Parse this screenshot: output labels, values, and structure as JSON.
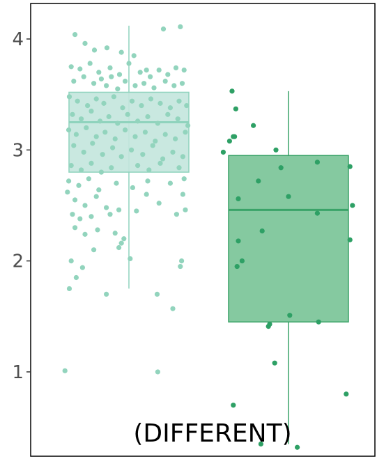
{
  "chart_data": {
    "type": "box",
    "title": "",
    "xlabel": "",
    "ylabel": "",
    "ylim": [
      0.24,
      4.32
    ],
    "yticks": [
      1,
      2,
      3,
      4
    ],
    "grid": false,
    "annotation": "(DIFFERENT)",
    "groups": [
      {
        "color_fill": "#c3e6dd",
        "color_stroke": "#8fd3bd",
        "color_point": "#92d4bd",
        "box": {
          "whisker_low": 1.75,
          "q1": 2.8,
          "median": 3.25,
          "q3": 3.52,
          "whisker_high": 4.12
        },
        "points": [
          [
            -0.86,
            4.04
          ],
          [
            -0.7,
            3.96
          ],
          [
            -0.55,
            3.9
          ],
          [
            -0.35,
            3.92
          ],
          [
            -0.12,
            3.88
          ],
          [
            0.08,
            3.85
          ],
          [
            0.28,
            3.72
          ],
          [
            0.55,
            4.09
          ],
          [
            0.82,
            4.11
          ],
          [
            -0.92,
            3.75
          ],
          [
            -0.78,
            3.73
          ],
          [
            -0.62,
            3.78
          ],
          [
            -0.48,
            3.7
          ],
          [
            -0.3,
            3.74
          ],
          [
            -0.15,
            3.68
          ],
          [
            0.0,
            3.78
          ],
          [
            0.18,
            3.7
          ],
          [
            0.34,
            3.66
          ],
          [
            0.48,
            3.72
          ],
          [
            0.62,
            3.68
          ],
          [
            0.75,
            3.74
          ],
          [
            0.88,
            3.72
          ],
          [
            -0.88,
            3.62
          ],
          [
            -0.72,
            3.66
          ],
          [
            -0.56,
            3.6
          ],
          [
            -0.44,
            3.64
          ],
          [
            -0.36,
            3.58
          ],
          [
            -0.28,
            3.66
          ],
          [
            -0.18,
            3.55
          ],
          [
            -0.06,
            3.62
          ],
          [
            0.1,
            3.58
          ],
          [
            0.24,
            3.6
          ],
          [
            0.4,
            3.56
          ],
          [
            0.58,
            3.62
          ],
          [
            0.72,
            3.58
          ],
          [
            0.85,
            3.6
          ],
          [
            -0.95,
            3.48
          ],
          [
            -0.82,
            3.44
          ],
          [
            -0.66,
            3.4
          ],
          [
            -0.52,
            3.46
          ],
          [
            -0.4,
            3.42
          ],
          [
            -0.24,
            3.48
          ],
          [
            -0.1,
            3.38
          ],
          [
            0.05,
            3.44
          ],
          [
            0.2,
            3.4
          ],
          [
            0.35,
            3.46
          ],
          [
            0.5,
            3.42
          ],
          [
            0.66,
            3.38
          ],
          [
            0.8,
            3.44
          ],
          [
            0.92,
            3.4
          ],
          [
            -0.9,
            3.32
          ],
          [
            -0.76,
            3.28
          ],
          [
            -0.6,
            3.35
          ],
          [
            -0.46,
            3.26
          ],
          [
            -0.32,
            3.3
          ],
          [
            -0.18,
            3.24
          ],
          [
            -0.02,
            3.32
          ],
          [
            0.14,
            3.26
          ],
          [
            0.3,
            3.3
          ],
          [
            0.46,
            3.24
          ],
          [
            0.62,
            3.32
          ],
          [
            0.78,
            3.28
          ],
          [
            0.94,
            3.22
          ],
          [
            -0.96,
            3.18
          ],
          [
            -0.84,
            3.14
          ],
          [
            -0.68,
            3.2
          ],
          [
            -0.52,
            3.12
          ],
          [
            -0.38,
            3.16
          ],
          [
            -0.22,
            3.1
          ],
          [
            -0.06,
            3.18
          ],
          [
            0.1,
            3.12
          ],
          [
            0.26,
            3.16
          ],
          [
            0.42,
            3.08
          ],
          [
            0.58,
            3.14
          ],
          [
            0.74,
            3.1
          ],
          [
            0.9,
            3.16
          ],
          [
            -0.88,
            3.04
          ],
          [
            -0.72,
            2.98
          ],
          [
            -0.58,
            3.06
          ],
          [
            -0.42,
            2.96
          ],
          [
            -0.26,
            3.02
          ],
          [
            -0.12,
            2.94
          ],
          [
            0.04,
            3.0
          ],
          [
            0.22,
            2.96
          ],
          [
            0.38,
            3.04
          ],
          [
            0.54,
            2.92
          ],
          [
            0.7,
            2.98
          ],
          [
            0.86,
            2.94
          ],
          [
            -0.92,
            2.86
          ],
          [
            -0.76,
            2.82
          ],
          [
            -0.6,
            2.88
          ],
          [
            -0.44,
            2.8
          ],
          [
            -0.28,
            2.84
          ],
          [
            0.14,
            2.86
          ],
          [
            0.32,
            2.82
          ],
          [
            0.5,
            2.88
          ],
          [
            0.8,
            2.84
          ],
          [
            -0.96,
            2.72
          ],
          [
            -0.8,
            2.68
          ],
          [
            -0.64,
            2.74
          ],
          [
            -0.48,
            2.64
          ],
          [
            -0.2,
            2.7
          ],
          [
            0.06,
            2.66
          ],
          [
            0.3,
            2.72
          ],
          [
            0.66,
            2.7
          ],
          [
            0.88,
            2.74
          ],
          [
            -0.98,
            2.62
          ],
          [
            -0.86,
            2.55
          ],
          [
            -0.7,
            2.5
          ],
          [
            -0.52,
            2.58
          ],
          [
            -0.36,
            2.48
          ],
          [
            -0.16,
            2.46
          ],
          [
            0.28,
            2.6
          ],
          [
            0.48,
            2.52
          ],
          [
            0.86,
            2.6
          ],
          [
            -0.9,
            2.42
          ],
          [
            -0.78,
            2.38
          ],
          [
            -0.6,
            2.4
          ],
          [
            -0.3,
            2.42
          ],
          [
            0.12,
            2.45
          ],
          [
            0.76,
            2.42
          ],
          [
            0.9,
            2.46
          ],
          [
            -0.86,
            2.3
          ],
          [
            -0.7,
            2.24
          ],
          [
            -0.5,
            2.28
          ],
          [
            -0.22,
            2.25
          ],
          [
            -0.08,
            2.2
          ],
          [
            -0.16,
            2.12
          ],
          [
            -0.12,
            2.16
          ],
          [
            -0.56,
            2.1
          ],
          [
            -0.92,
            2.0
          ],
          [
            -0.74,
            1.94
          ],
          [
            0.02,
            2.02
          ],
          [
            -0.84,
            1.85
          ],
          [
            -0.95,
            1.75
          ],
          [
            -0.36,
            1.7
          ],
          [
            0.45,
            1.7
          ],
          [
            0.82,
            1.95
          ],
          [
            0.84,
            2.0
          ],
          [
            0.7,
            1.57
          ],
          [
            -1.02,
            1.01
          ],
          [
            0.46,
            1.0
          ]
        ]
      },
      {
        "color_fill": "#85c9a0",
        "color_stroke": "#3aa368",
        "color_point": "#2ea065",
        "box": {
          "whisker_low": 0.35,
          "q1": 1.45,
          "median": 2.46,
          "q3": 2.95,
          "whisker_high": 3.53
        },
        "points": [
          [
            -0.9,
            3.53
          ],
          [
            -0.84,
            3.37
          ],
          [
            -0.86,
            3.12
          ],
          [
            -0.94,
            3.08
          ],
          [
            -0.88,
            3.12
          ],
          [
            -0.56,
            3.22
          ],
          [
            -0.2,
            3.0
          ],
          [
            -1.04,
            2.98
          ],
          [
            -0.48,
            2.72
          ],
          [
            -0.12,
            2.84
          ],
          [
            0.46,
            2.89
          ],
          [
            0.98,
            2.85
          ],
          [
            -0.8,
            2.56
          ],
          [
            0.0,
            2.58
          ],
          [
            0.46,
            2.43
          ],
          [
            1.02,
            2.5
          ],
          [
            -0.42,
            2.27
          ],
          [
            0.98,
            2.19
          ],
          [
            -0.8,
            2.18
          ],
          [
            -0.74,
            2.0
          ],
          [
            -0.82,
            1.95
          ],
          [
            0.02,
            1.51
          ],
          [
            -0.3,
            1.43
          ],
          [
            -0.32,
            1.41
          ],
          [
            0.48,
            1.45
          ],
          [
            -0.22,
            1.08
          ],
          [
            0.92,
            0.8
          ],
          [
            -0.88,
            0.7
          ],
          [
            -0.44,
            0.35
          ],
          [
            0.14,
            0.32
          ]
        ]
      }
    ]
  }
}
